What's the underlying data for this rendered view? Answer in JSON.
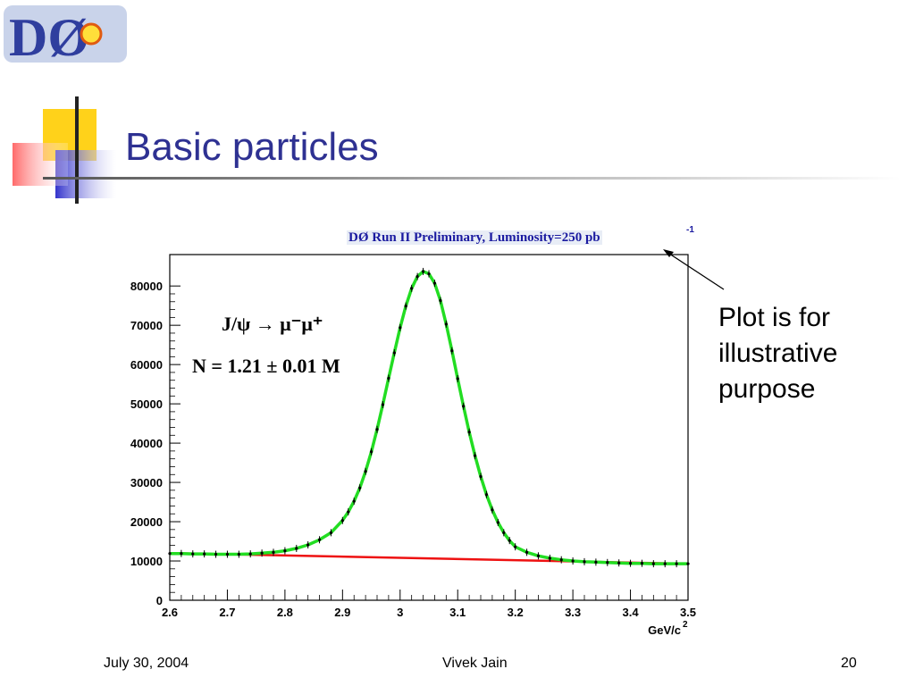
{
  "logo_text": "DØ",
  "slide": {
    "title": "Basic particles",
    "plot_header": "DØ Run II Preliminary, Luminosity=250 pb",
    "plot_header_sup": "-1",
    "annotation_lines": [
      "Plot is for",
      "illustrative",
      "purpose"
    ],
    "decay_label": "J/ψ → μ⁻μ⁺",
    "yield_label": "N = 1.21 ± 0.01 M"
  },
  "footer": {
    "date": "July 30, 2004",
    "author": "Vivek Jain",
    "page": "20"
  },
  "chart_data": {
    "type": "line",
    "xlabel": "GeV/c",
    "xlabel_sup": "2",
    "xlim": [
      2.6,
      3.5
    ],
    "ylim": [
      0,
      88000
    ],
    "xticks": [
      2.6,
      2.7,
      2.8,
      2.9,
      3,
      3.1,
      3.2,
      3.3,
      3.4,
      3.5
    ],
    "xtick_labels": [
      "2.6",
      "2.7",
      "2.8",
      "2.9",
      "3",
      "3.1",
      "3.2",
      "3.3",
      "3.4",
      "3.5"
    ],
    "yticks": [
      0,
      10000,
      20000,
      30000,
      40000,
      50000,
      60000,
      70000,
      80000
    ],
    "ytick_labels": [
      "0",
      "10000",
      "20000",
      "30000",
      "40000",
      "50000",
      "60000",
      "70000",
      "80000"
    ],
    "colors": {
      "fit": "#22dd22",
      "background": "#ee1111",
      "points": "#000000"
    },
    "background_fit": {
      "x": [
        2.6,
        3.5
      ],
      "y": [
        12000,
        9300
      ]
    },
    "series": [
      {
        "x": [
          2.6,
          2.62,
          2.64,
          2.66,
          2.68,
          2.7,
          2.72,
          2.74,
          2.76,
          2.78,
          2.8,
          2.82,
          2.84,
          2.86,
          2.88,
          2.9,
          2.91,
          2.92,
          2.93,
          2.94,
          2.95,
          2.96,
          2.97,
          2.98,
          2.99,
          3.0,
          3.01,
          3.02,
          3.03,
          3.04,
          3.05,
          3.06,
          3.07,
          3.08,
          3.09,
          3.1,
          3.11,
          3.12,
          3.13,
          3.14,
          3.15,
          3.16,
          3.17,
          3.18,
          3.19,
          3.2,
          3.22,
          3.24,
          3.26,
          3.28,
          3.3,
          3.32,
          3.34,
          3.36,
          3.38,
          3.4,
          3.42,
          3.44,
          3.46,
          3.48,
          3.5
        ],
        "y": [
          11900,
          11900,
          11800,
          11800,
          11700,
          11700,
          11700,
          11800,
          12000,
          12200,
          12600,
          13200,
          14100,
          15400,
          17200,
          20300,
          22500,
          25200,
          28600,
          32800,
          37800,
          43500,
          49800,
          56500,
          63000,
          69400,
          74900,
          79400,
          82400,
          83700,
          83100,
          80700,
          76300,
          70300,
          63500,
          56400,
          49400,
          42800,
          36800,
          31500,
          26900,
          23000,
          19800,
          17200,
          15200,
          13600,
          12200,
          11300,
          10700,
          10300,
          10000,
          9800,
          9700,
          9600,
          9500,
          9400,
          9400,
          9300,
          9300,
          9300,
          9300
        ]
      }
    ]
  }
}
